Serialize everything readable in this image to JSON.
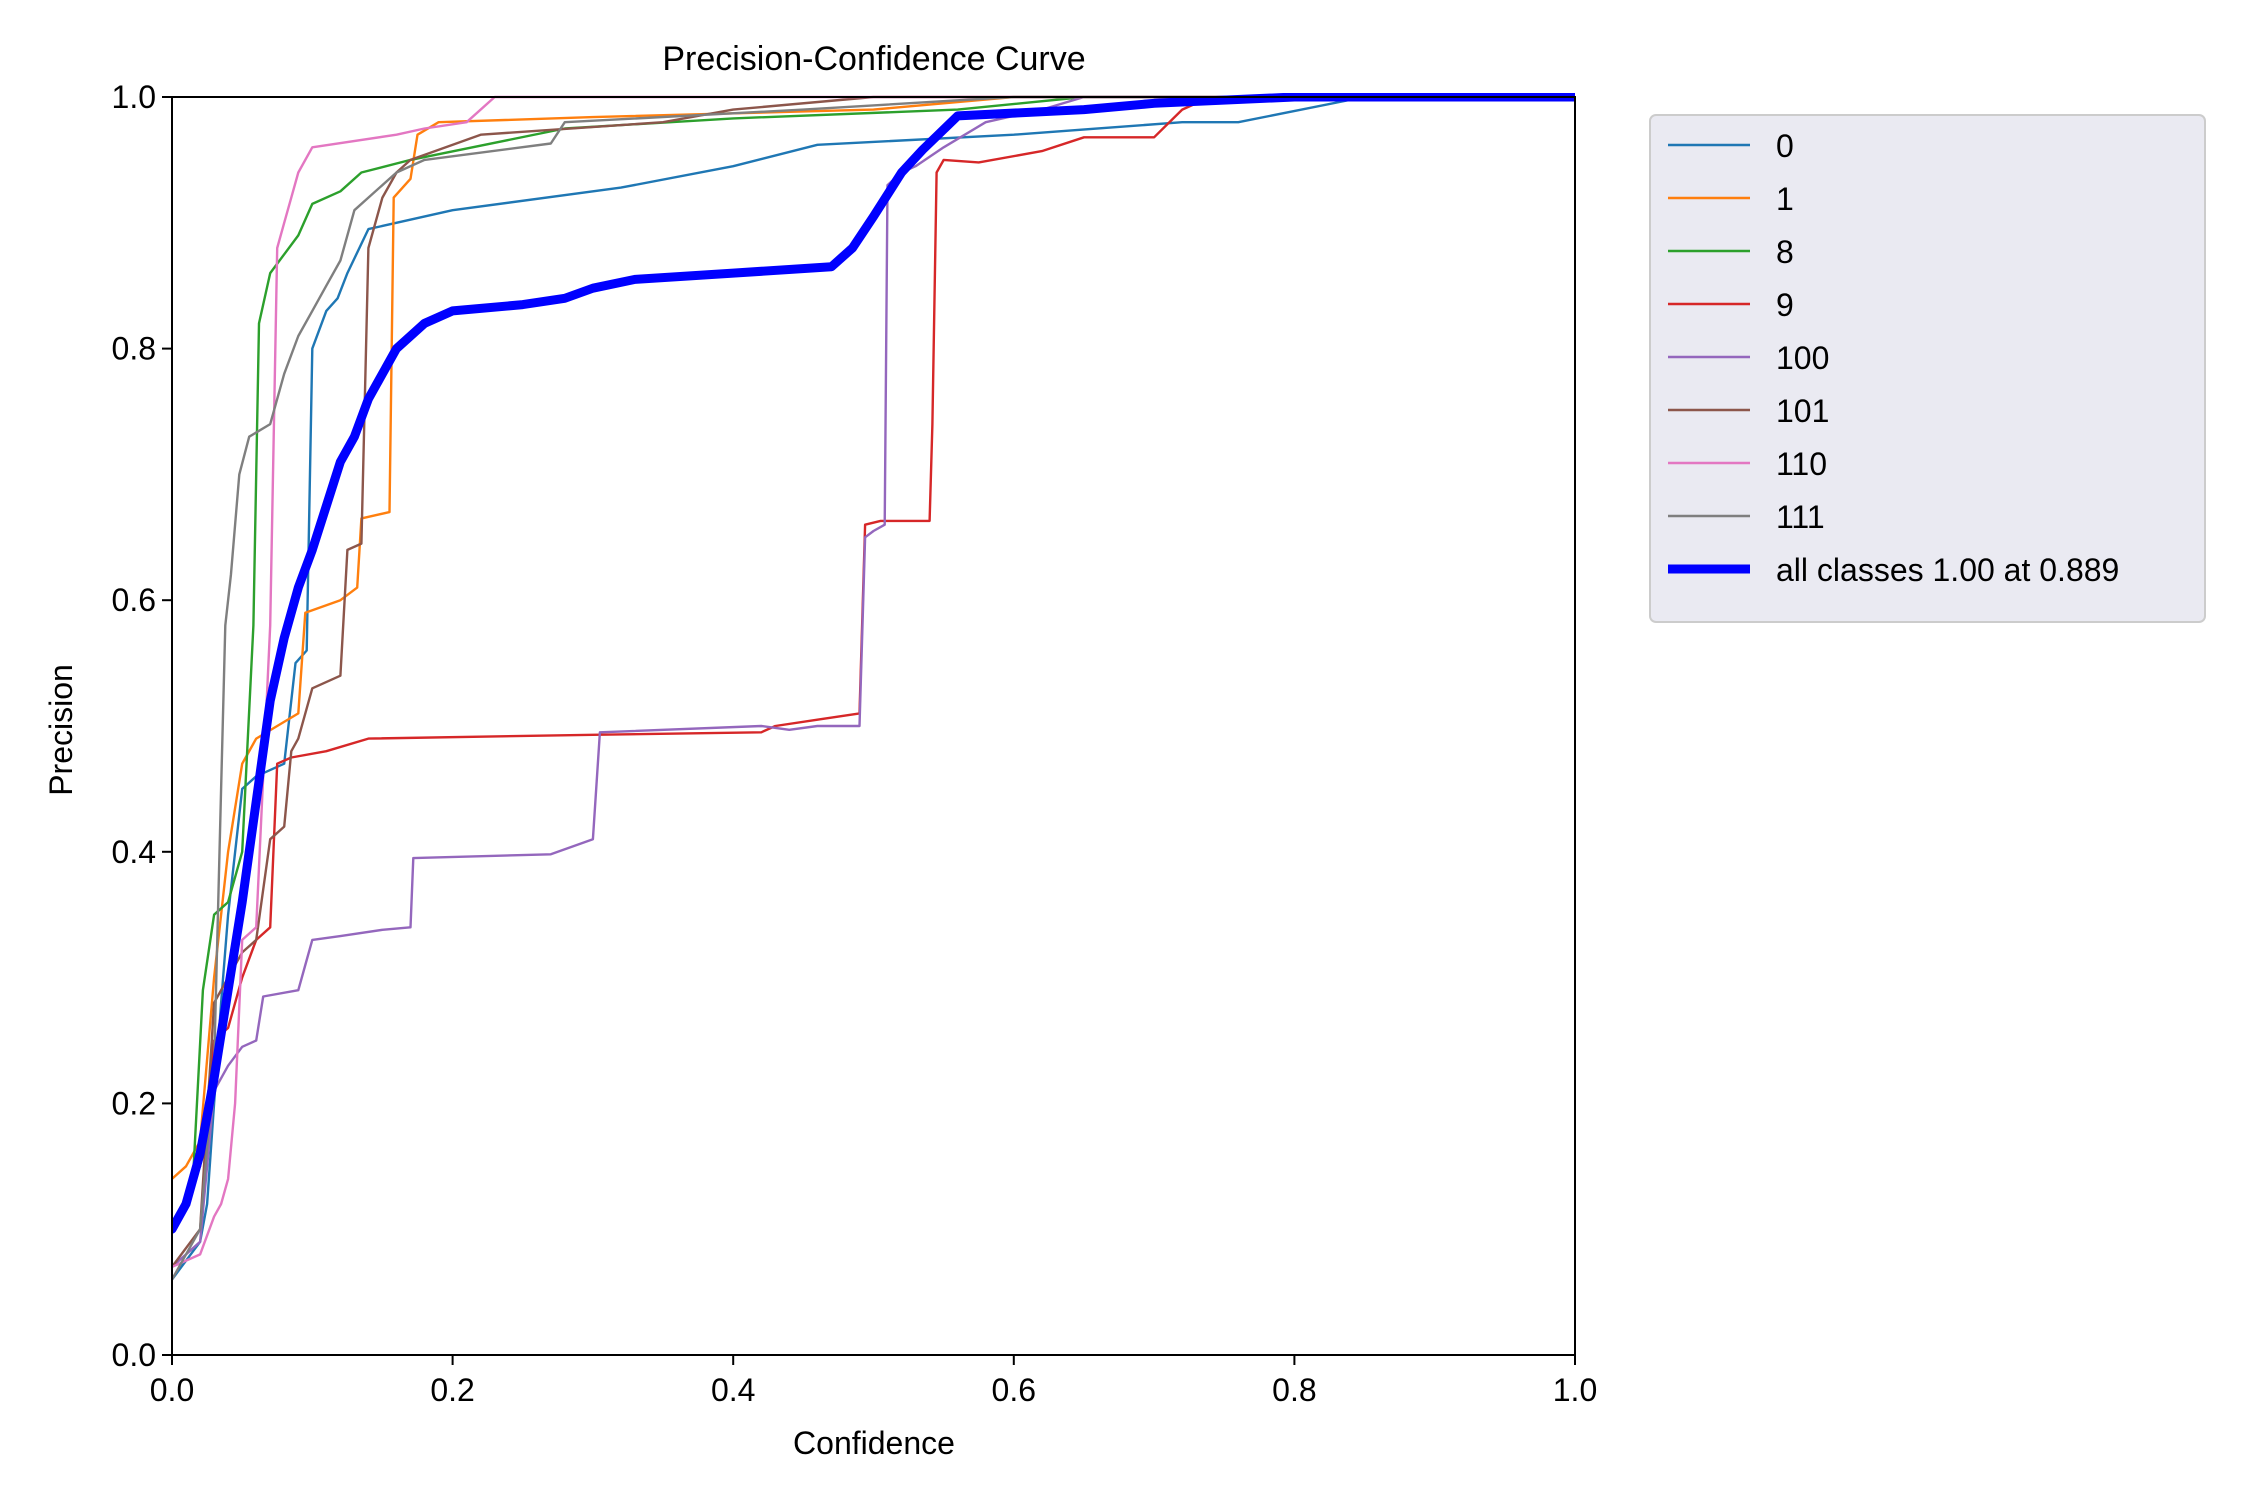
{
  "chart_data": {
    "type": "line",
    "title": "Precision-Confidence Curve",
    "xlabel": "Confidence",
    "ylabel": "Precision",
    "xlim": [
      0,
      1
    ],
    "ylim": [
      0,
      1
    ],
    "x_ticks": [
      "0.0",
      "0.2",
      "0.4",
      "0.6",
      "0.8",
      "1.0"
    ],
    "y_ticks": [
      "0.0",
      "0.2",
      "0.4",
      "0.6",
      "0.8",
      "1.0"
    ],
    "grid": false,
    "legend_position": "outside-right-top",
    "series": [
      {
        "name": "0",
        "color": "#1f77b4",
        "width": "thin",
        "points": [
          [
            0.0,
            0.06
          ],
          [
            0.02,
            0.09
          ],
          [
            0.025,
            0.12
          ],
          [
            0.03,
            0.2
          ],
          [
            0.035,
            0.28
          ],
          [
            0.04,
            0.35
          ],
          [
            0.05,
            0.45
          ],
          [
            0.06,
            0.46
          ],
          [
            0.08,
            0.47
          ],
          [
            0.088,
            0.55
          ],
          [
            0.096,
            0.56
          ],
          [
            0.1,
            0.8
          ],
          [
            0.11,
            0.83
          ],
          [
            0.118,
            0.84
          ],
          [
            0.125,
            0.86
          ],
          [
            0.14,
            0.895
          ],
          [
            0.2,
            0.91
          ],
          [
            0.32,
            0.928
          ],
          [
            0.4,
            0.945
          ],
          [
            0.46,
            0.962
          ],
          [
            0.6,
            0.97
          ],
          [
            0.72,
            0.98
          ],
          [
            0.76,
            0.98
          ],
          [
            0.85,
            1.0
          ],
          [
            1.0,
            1.0
          ]
        ]
      },
      {
        "name": "1",
        "color": "#ff7f0e",
        "width": "thin",
        "points": [
          [
            0.0,
            0.14
          ],
          [
            0.01,
            0.15
          ],
          [
            0.02,
            0.17
          ],
          [
            0.03,
            0.3
          ],
          [
            0.04,
            0.4
          ],
          [
            0.05,
            0.47
          ],
          [
            0.06,
            0.49
          ],
          [
            0.075,
            0.5
          ],
          [
            0.09,
            0.51
          ],
          [
            0.095,
            0.59
          ],
          [
            0.12,
            0.6
          ],
          [
            0.132,
            0.61
          ],
          [
            0.135,
            0.665
          ],
          [
            0.155,
            0.67
          ],
          [
            0.158,
            0.92
          ],
          [
            0.17,
            0.935
          ],
          [
            0.175,
            0.97
          ],
          [
            0.19,
            0.98
          ],
          [
            0.3,
            0.984
          ],
          [
            0.5,
            0.99
          ],
          [
            0.6,
            1.0
          ],
          [
            1.0,
            1.0
          ]
        ]
      },
      {
        "name": "8",
        "color": "#2ca02c",
        "width": "thin",
        "points": [
          [
            0.0,
            0.1
          ],
          [
            0.015,
            0.14
          ],
          [
            0.022,
            0.29
          ],
          [
            0.03,
            0.35
          ],
          [
            0.04,
            0.36
          ],
          [
            0.05,
            0.4
          ],
          [
            0.058,
            0.58
          ],
          [
            0.062,
            0.82
          ],
          [
            0.07,
            0.86
          ],
          [
            0.08,
            0.875
          ],
          [
            0.09,
            0.89
          ],
          [
            0.1,
            0.915
          ],
          [
            0.12,
            0.925
          ],
          [
            0.135,
            0.94
          ],
          [
            0.17,
            0.95
          ],
          [
            0.28,
            0.975
          ],
          [
            0.4,
            0.983
          ],
          [
            0.56,
            0.99
          ],
          [
            0.65,
            1.0
          ],
          [
            1.0,
            1.0
          ]
        ]
      },
      {
        "name": "9",
        "color": "#d62728",
        "width": "thin",
        "points": [
          [
            0.0,
            0.1
          ],
          [
            0.02,
            0.15
          ],
          [
            0.03,
            0.25
          ],
          [
            0.04,
            0.26
          ],
          [
            0.05,
            0.3
          ],
          [
            0.06,
            0.33
          ],
          [
            0.07,
            0.34
          ],
          [
            0.075,
            0.47
          ],
          [
            0.085,
            0.475
          ],
          [
            0.11,
            0.48
          ],
          [
            0.14,
            0.49
          ],
          [
            0.3,
            0.493
          ],
          [
            0.42,
            0.495
          ],
          [
            0.43,
            0.5
          ],
          [
            0.46,
            0.505
          ],
          [
            0.49,
            0.51
          ],
          [
            0.494,
            0.66
          ],
          [
            0.505,
            0.663
          ],
          [
            0.54,
            0.663
          ],
          [
            0.542,
            0.74
          ],
          [
            0.545,
            0.94
          ],
          [
            0.55,
            0.95
          ],
          [
            0.575,
            0.948
          ],
          [
            0.62,
            0.957
          ],
          [
            0.65,
            0.968
          ],
          [
            0.7,
            0.968
          ],
          [
            0.72,
            0.99
          ],
          [
            0.74,
            1.0
          ],
          [
            1.0,
            1.0
          ]
        ]
      },
      {
        "name": "100",
        "color": "#9467bd",
        "width": "thin",
        "points": [
          [
            0.0,
            0.07
          ],
          [
            0.02,
            0.09
          ],
          [
            0.03,
            0.21
          ],
          [
            0.04,
            0.23
          ],
          [
            0.05,
            0.245
          ],
          [
            0.06,
            0.25
          ],
          [
            0.065,
            0.285
          ],
          [
            0.09,
            0.29
          ],
          [
            0.095,
            0.31
          ],
          [
            0.1,
            0.33
          ],
          [
            0.12,
            0.333
          ],
          [
            0.15,
            0.338
          ],
          [
            0.17,
            0.34
          ],
          [
            0.172,
            0.395
          ],
          [
            0.27,
            0.398
          ],
          [
            0.3,
            0.41
          ],
          [
            0.305,
            0.495
          ],
          [
            0.42,
            0.5
          ],
          [
            0.44,
            0.497
          ],
          [
            0.46,
            0.5
          ],
          [
            0.49,
            0.5
          ],
          [
            0.494,
            0.65
          ],
          [
            0.5,
            0.655
          ],
          [
            0.508,
            0.66
          ],
          [
            0.51,
            0.93
          ],
          [
            0.52,
            0.94
          ],
          [
            0.53,
            0.945
          ],
          [
            0.55,
            0.96
          ],
          [
            0.58,
            0.98
          ],
          [
            0.62,
            0.99
          ],
          [
            0.65,
            1.0
          ],
          [
            1.0,
            1.0
          ]
        ]
      },
      {
        "name": "101",
        "color": "#8c564b",
        "width": "thin",
        "points": [
          [
            0.0,
            0.07
          ],
          [
            0.02,
            0.1
          ],
          [
            0.03,
            0.28
          ],
          [
            0.04,
            0.3
          ],
          [
            0.05,
            0.32
          ],
          [
            0.06,
            0.33
          ],
          [
            0.07,
            0.41
          ],
          [
            0.08,
            0.42
          ],
          [
            0.085,
            0.48
          ],
          [
            0.09,
            0.49
          ],
          [
            0.1,
            0.53
          ],
          [
            0.12,
            0.54
          ],
          [
            0.125,
            0.64
          ],
          [
            0.135,
            0.645
          ],
          [
            0.14,
            0.88
          ],
          [
            0.15,
            0.92
          ],
          [
            0.16,
            0.94
          ],
          [
            0.17,
            0.95
          ],
          [
            0.22,
            0.97
          ],
          [
            0.35,
            0.98
          ],
          [
            0.4,
            0.99
          ],
          [
            0.5,
            1.0
          ],
          [
            1.0,
            1.0
          ]
        ]
      },
      {
        "name": "110",
        "color": "#e377c2",
        "width": "thin",
        "points": [
          [
            0.0,
            0.07
          ],
          [
            0.02,
            0.08
          ],
          [
            0.03,
            0.11
          ],
          [
            0.035,
            0.12
          ],
          [
            0.04,
            0.14
          ],
          [
            0.045,
            0.2
          ],
          [
            0.05,
            0.33
          ],
          [
            0.06,
            0.34
          ],
          [
            0.07,
            0.58
          ],
          [
            0.075,
            0.88
          ],
          [
            0.08,
            0.9
          ],
          [
            0.085,
            0.92
          ],
          [
            0.09,
            0.94
          ],
          [
            0.1,
            0.96
          ],
          [
            0.16,
            0.97
          ],
          [
            0.18,
            0.975
          ],
          [
            0.21,
            0.98
          ],
          [
            0.23,
            1.0
          ],
          [
            1.0,
            1.0
          ]
        ]
      },
      {
        "name": "111",
        "color": "#7f7f7f",
        "width": "thin",
        "points": [
          [
            0.0,
            0.06
          ],
          [
            0.01,
            0.08
          ],
          [
            0.02,
            0.1
          ],
          [
            0.03,
            0.23
          ],
          [
            0.035,
            0.45
          ],
          [
            0.038,
            0.58
          ],
          [
            0.042,
            0.62
          ],
          [
            0.048,
            0.7
          ],
          [
            0.055,
            0.73
          ],
          [
            0.07,
            0.74
          ],
          [
            0.08,
            0.78
          ],
          [
            0.09,
            0.81
          ],
          [
            0.1,
            0.83
          ],
          [
            0.11,
            0.85
          ],
          [
            0.12,
            0.87
          ],
          [
            0.13,
            0.91
          ],
          [
            0.14,
            0.92
          ],
          [
            0.16,
            0.94
          ],
          [
            0.18,
            0.95
          ],
          [
            0.27,
            0.963
          ],
          [
            0.28,
            0.98
          ],
          [
            0.45,
            0.99
          ],
          [
            0.6,
            1.0
          ],
          [
            1.0,
            1.0
          ]
        ]
      },
      {
        "name": "all classes 1.00 at 0.889",
        "color": "#0000ff",
        "width": "thick",
        "points": [
          [
            0.0,
            0.1
          ],
          [
            0.01,
            0.12
          ],
          [
            0.02,
            0.16
          ],
          [
            0.03,
            0.22
          ],
          [
            0.04,
            0.29
          ],
          [
            0.05,
            0.36
          ],
          [
            0.06,
            0.44
          ],
          [
            0.07,
            0.52
          ],
          [
            0.08,
            0.57
          ],
          [
            0.09,
            0.61
          ],
          [
            0.1,
            0.64
          ],
          [
            0.12,
            0.71
          ],
          [
            0.13,
            0.73
          ],
          [
            0.14,
            0.76
          ],
          [
            0.16,
            0.8
          ],
          [
            0.18,
            0.82
          ],
          [
            0.2,
            0.83
          ],
          [
            0.25,
            0.835
          ],
          [
            0.28,
            0.84
          ],
          [
            0.3,
            0.848
          ],
          [
            0.33,
            0.855
          ],
          [
            0.4,
            0.86
          ],
          [
            0.47,
            0.865
          ],
          [
            0.485,
            0.88
          ],
          [
            0.5,
            0.905
          ],
          [
            0.52,
            0.94
          ],
          [
            0.535,
            0.958
          ],
          [
            0.56,
            0.985
          ],
          [
            0.65,
            0.99
          ],
          [
            0.7,
            0.995
          ],
          [
            0.8,
            1.0
          ],
          [
            1.0,
            1.0
          ]
        ]
      }
    ]
  }
}
